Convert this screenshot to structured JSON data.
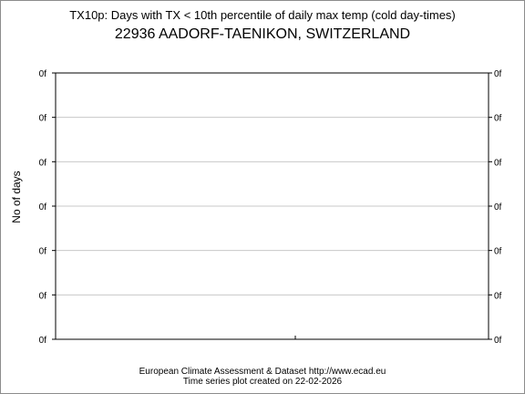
{
  "chart_data": {
    "type": "line",
    "title": "TX10p: Days with TX < 10th percentile of daily max temp (cold day-times)",
    "subtitle": "22936 AADORF-TAENIKON, SWITZERLAND",
    "xlabel": "",
    "ylabel": "No of days",
    "y_tick_labels": [
      "0f",
      "0f",
      "0f",
      "0f",
      "0f",
      "0f",
      "0f"
    ],
    "grid": true,
    "series": [],
    "colors": {
      "frame": "#000000",
      "grid": "#c8c8c8",
      "border": "#8c8c8c"
    }
  },
  "footer": {
    "line1": "European Climate Assessment & Dataset  http://www.ecad.eu",
    "line2": "Time series plot created on 22-02-2026"
  }
}
